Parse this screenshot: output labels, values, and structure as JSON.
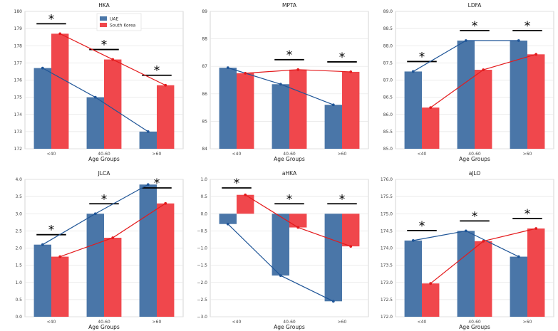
{
  "chart_data": [
    {
      "type": "bar",
      "title": "HKA",
      "xlabel": "Age Groups",
      "ylabel": "",
      "categories": [
        "<40",
        "40-60",
        ">60"
      ],
      "series": [
        {
          "name": "UAE",
          "values": [
            176.7,
            175.0,
            173.0
          ],
          "color": "#4a76a8"
        },
        {
          "name": "South Korea",
          "values": [
            178.7,
            177.2,
            175.7
          ],
          "color": "#f0474c"
        }
      ],
      "ylim": [
        172,
        180
      ],
      "yticks": [
        "172",
        "173",
        "174",
        "175",
        "176",
        "177",
        "178",
        "179",
        "180"
      ],
      "significance": [
        "*",
        "*",
        "*"
      ],
      "legend": {
        "placement": "top-center"
      }
    },
    {
      "type": "bar",
      "title": "MPTA",
      "xlabel": "Age Groups",
      "ylabel": "",
      "categories": [
        "<40",
        "40-60",
        ">60"
      ],
      "series": [
        {
          "name": "UAE",
          "values": [
            86.95,
            86.35,
            85.6
          ],
          "color": "#4a76a8"
        },
        {
          "name": "South Korea",
          "values": [
            86.75,
            86.88,
            86.8
          ],
          "color": "#f0474c"
        }
      ],
      "ylim": [
        84,
        89
      ],
      "yticks": [
        "84",
        "85",
        "86",
        "87",
        "88",
        "89"
      ],
      "significance": [
        "",
        "*",
        "*"
      ]
    },
    {
      "type": "bar",
      "title": "LDFA",
      "xlabel": "Age Groups",
      "ylabel": "",
      "categories": [
        "<40",
        "40-60",
        ">60"
      ],
      "series": [
        {
          "name": "UAE",
          "values": [
            87.25,
            88.15,
            88.15
          ],
          "color": "#4a76a8"
        },
        {
          "name": "South Korea",
          "values": [
            86.2,
            87.3,
            87.75
          ],
          "color": "#f0474c"
        }
      ],
      "ylim": [
        85.0,
        89.0
      ],
      "yticks": [
        "85.0",
        "85.5",
        "86.0",
        "86.5",
        "87.0",
        "87.5",
        "88.0",
        "88.5",
        "89.0"
      ],
      "significance": [
        "*",
        "*",
        "*"
      ]
    },
    {
      "type": "bar",
      "title": "JLCA",
      "xlabel": "Age Groups",
      "ylabel": "",
      "categories": [
        "<40",
        "40-60",
        ">60"
      ],
      "series": [
        {
          "name": "UAE",
          "values": [
            2.1,
            3.0,
            3.85
          ],
          "color": "#4a76a8"
        },
        {
          "name": "South Korea",
          "values": [
            1.75,
            2.3,
            3.3
          ],
          "color": "#f0474c"
        }
      ],
      "ylim": [
        0.0,
        4.0
      ],
      "yticks": [
        "0.0",
        "0.5",
        "1.0",
        "1.5",
        "2.0",
        "2.5",
        "3.0",
        "3.5",
        "4.0"
      ],
      "significance": [
        "*",
        "*",
        "*"
      ]
    },
    {
      "type": "bar",
      "title": "aHKA",
      "xlabel": "Age Groups",
      "ylabel": "",
      "categories": [
        "<40",
        "40-60",
        ">60"
      ],
      "series": [
        {
          "name": "UAE",
          "values": [
            -0.3,
            -1.8,
            -2.55
          ],
          "color": "#4a76a8"
        },
        {
          "name": "South Korea",
          "values": [
            0.55,
            -0.4,
            -0.95
          ],
          "color": "#f0474c"
        }
      ],
      "ylim": [
        -3.0,
        1.0
      ],
      "yticks": [
        "−3.0",
        "−2.5",
        "−2.0",
        "−1.5",
        "−1.0",
        "−0.5",
        "0.0",
        "0.5",
        "1.0"
      ],
      "significance": [
        "*",
        "*",
        "*"
      ]
    },
    {
      "type": "bar",
      "title": "aJLO",
      "xlabel": "Age Groups",
      "ylabel": "",
      "categories": [
        "<40",
        "40-60",
        ">60"
      ],
      "series": [
        {
          "name": "UAE",
          "values": [
            174.22,
            174.5,
            173.75
          ],
          "color": "#4a76a8"
        },
        {
          "name": "South Korea",
          "values": [
            172.97,
            174.2,
            174.57
          ],
          "color": "#f0474c"
        }
      ],
      "ylim": [
        172.0,
        176.0
      ],
      "yticks": [
        "172.0",
        "172.5",
        "173.0",
        "173.5",
        "174.0",
        "174.5",
        "175.0",
        "175.5",
        "176.0"
      ],
      "significance": [
        "*",
        "*",
        "*"
      ]
    }
  ],
  "colors": {
    "uae_bar": "#4a76a8",
    "uae_line": "#1f5597",
    "korea_bar": "#f0474c",
    "korea_line": "#e41a1c",
    "grid": "#e5e5e5",
    "frame": "#cccccc"
  }
}
